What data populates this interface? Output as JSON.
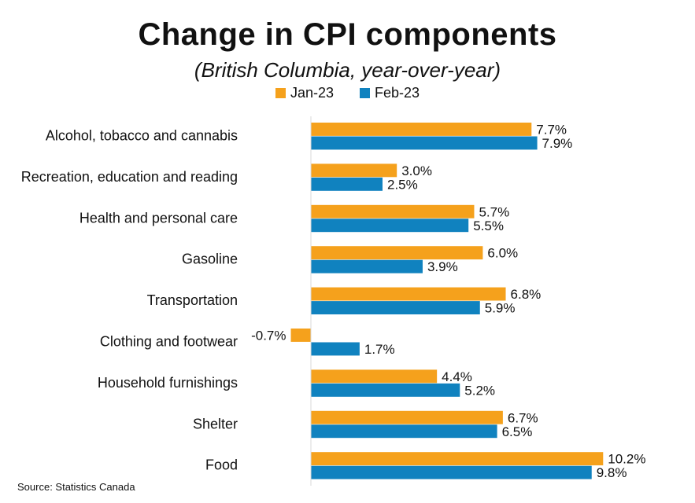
{
  "chart_data": {
    "type": "bar",
    "orientation": "horizontal",
    "title": "Change in CPI components",
    "subtitle": "(British Columbia, year-over-year)",
    "categories": [
      "Alcohol, tobacco and cannabis",
      "Recreation, education and reading",
      "Health and personal care",
      "Gasoline",
      "Transportation",
      "Clothing and footwear",
      "Household furnishings",
      "Shelter",
      "Food"
    ],
    "series": [
      {
        "name": "Jan-23",
        "color": "#F5A11C",
        "values": [
          7.7,
          3.0,
          5.7,
          6.0,
          6.8,
          -0.7,
          4.4,
          6.7,
          10.2
        ],
        "labels": [
          "7.7%",
          "3.0%",
          "5.7%",
          "6.0%",
          "6.8%",
          "-0.7%",
          "4.4%",
          "6.7%",
          "10.2%"
        ]
      },
      {
        "name": "Feb-23",
        "color": "#1082BF",
        "values": [
          7.9,
          2.5,
          5.5,
          3.9,
          5.9,
          1.7,
          5.2,
          6.5,
          9.8
        ],
        "labels": [
          "7.9%",
          "2.5%",
          "5.5%",
          "3.9%",
          "5.9%",
          "1.7%",
          "5.2%",
          "6.5%",
          "9.8%"
        ]
      }
    ],
    "xlim": [
      -1,
      10.2
    ],
    "grid": false,
    "legend": "top-center"
  },
  "source": "Source: Statistics Canada"
}
